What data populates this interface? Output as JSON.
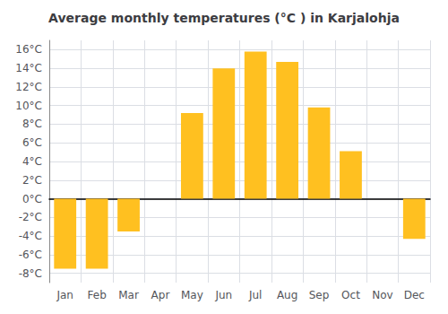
{
  "chart_data": {
    "type": "bar",
    "title": "Average monthly temperatures (°C ) in Karjalohja",
    "categories": [
      "Jan",
      "Feb",
      "Mar",
      "Apr",
      "May",
      "Jun",
      "Jul",
      "Aug",
      "Sep",
      "Oct",
      "Nov",
      "Dec"
    ],
    "values": [
      -7.5,
      -7.5,
      -3.5,
      0,
      9.2,
      14.0,
      15.8,
      14.7,
      9.8,
      5.1,
      0,
      -4.3
    ],
    "color": "#FFC020",
    "ylim": [
      -9,
      17
    ],
    "yticks": [
      {
        "value": -8,
        "label": "-8°C"
      },
      {
        "value": -6,
        "label": "-6°C"
      },
      {
        "value": -4,
        "label": "-4°C"
      },
      {
        "value": -2,
        "label": "-2°C"
      },
      {
        "value": 0,
        "label": "0°C"
      },
      {
        "value": 2,
        "label": "2°C"
      },
      {
        "value": 4,
        "label": "4°C"
      },
      {
        "value": 6,
        "label": "6°C"
      },
      {
        "value": 8,
        "label": "8°C"
      },
      {
        "value": 10,
        "label": "10°C"
      },
      {
        "value": 12,
        "label": "12°C"
      },
      {
        "value": 14,
        "label": "14°C"
      },
      {
        "value": 16,
        "label": "16°C"
      }
    ],
    "grid": true
  }
}
